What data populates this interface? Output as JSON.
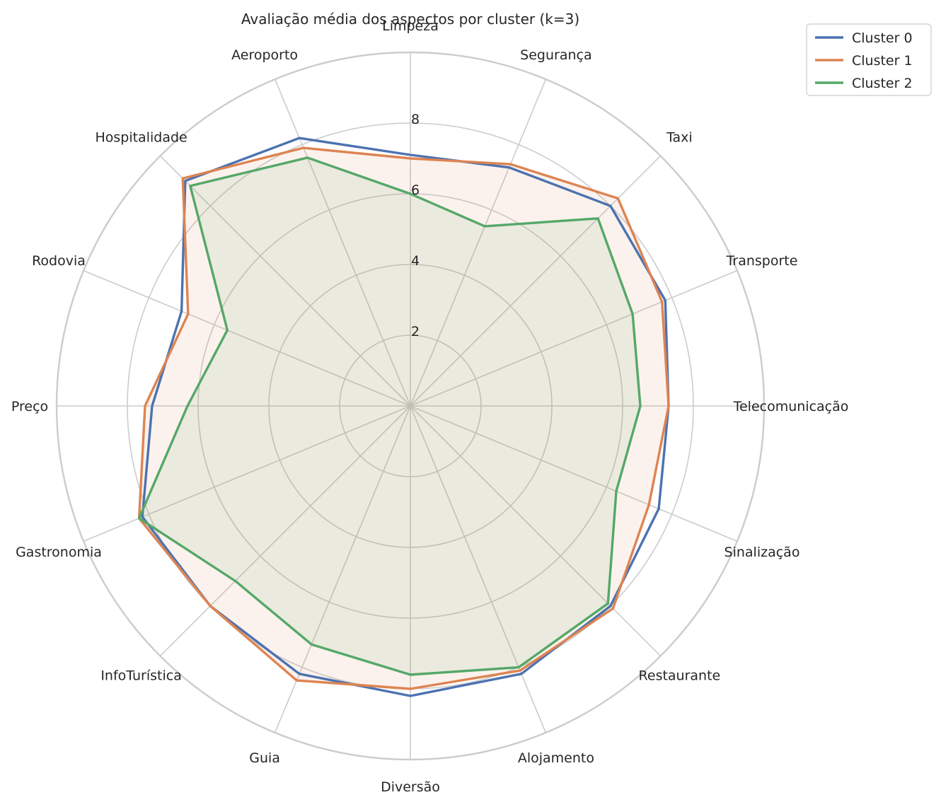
{
  "chart_data": {
    "type": "radar",
    "title": "Avaliação média dos aspectos por cluster (k=3)",
    "categories": [
      "Limpeza",
      "Segurança",
      "Taxi",
      "Transporte",
      "Telecomunicação",
      "Sinalização",
      "Restaurante",
      "Alojamento",
      "Diversão",
      "Guia",
      "InfoTurística",
      "Gastronomia",
      "Preço",
      "Rodovia",
      "Hospitalidade",
      "Aeroporto"
    ],
    "rlim": [
      0,
      10
    ],
    "rticks": [
      2,
      4,
      6,
      8
    ],
    "rtick_labels": [
      "2",
      "4",
      "6",
      "8"
    ],
    "grid": true,
    "legend_position": "upper right (outside)",
    "series": [
      {
        "name": "Cluster 0",
        "color": "#4c72b0",
        "fill": false,
        "values": [
          7.1,
          7.3,
          8.0,
          7.8,
          7.3,
          7.6,
          8.0,
          8.2,
          8.2,
          8.2,
          8.0,
          8.2,
          7.3,
          7.0,
          9.0,
          8.2
        ]
      },
      {
        "name": "Cluster 1",
        "color": "#dd8452",
        "fill": true,
        "values": [
          7.0,
          7.4,
          8.3,
          7.7,
          7.3,
          7.3,
          8.1,
          8.1,
          8.0,
          8.4,
          8.0,
          8.3,
          7.5,
          6.8,
          9.1,
          7.9
        ]
      },
      {
        "name": "Cluster 2",
        "color": "#55a868",
        "fill": true,
        "values": [
          6.0,
          5.5,
          7.5,
          6.8,
          6.5,
          6.3,
          7.9,
          8.0,
          7.6,
          7.3,
          7.0,
          8.3,
          6.3,
          5.6,
          8.8,
          7.6
        ]
      }
    ]
  }
}
